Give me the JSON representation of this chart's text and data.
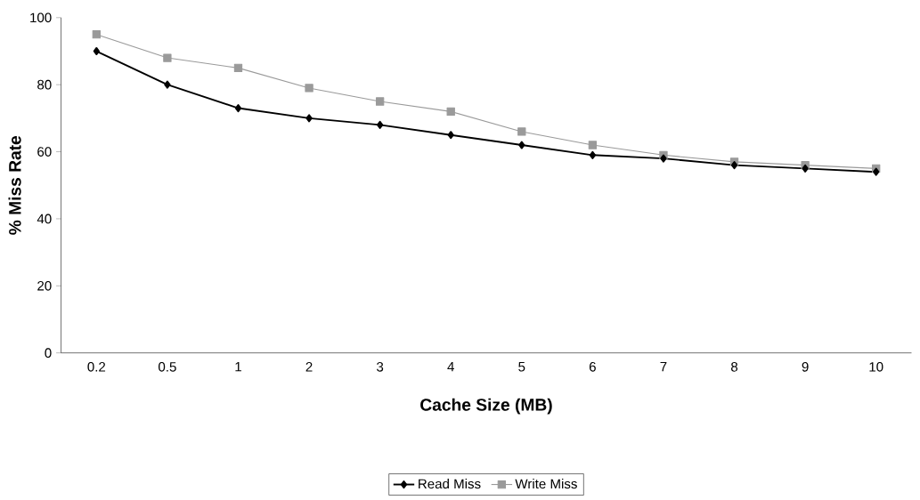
{
  "chart_data": {
    "type": "line",
    "xlabel": "Cache Size (MB)",
    "ylabel": "% Miss Rate",
    "categories": [
      "0.2",
      "0.5",
      "1",
      "2",
      "3",
      "4",
      "5",
      "6",
      "7",
      "8",
      "9",
      "10"
    ],
    "series": [
      {
        "name": "Read Miss",
        "color": "#000000",
        "marker": "diamond",
        "values": [
          90,
          80,
          73,
          70,
          68,
          65,
          62,
          59,
          58,
          56,
          55,
          54
        ]
      },
      {
        "name": "Write Miss",
        "color": "#9a9a9a",
        "marker": "square",
        "values": [
          95,
          88,
          85,
          79,
          75,
          72,
          66,
          62,
          59,
          57,
          56,
          55
        ]
      }
    ],
    "ylim": [
      0,
      100
    ],
    "yticks": [
      0,
      20,
      40,
      60,
      80,
      100
    ],
    "grid": false,
    "legend": "bottom"
  }
}
